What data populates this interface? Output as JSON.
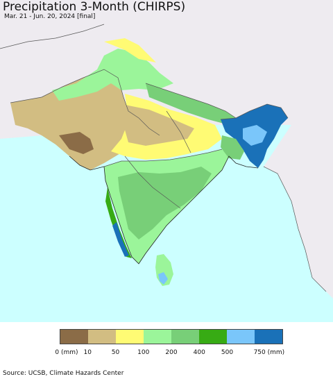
{
  "title": "Precipitation 3-Month (CHIRPS)",
  "subtitle": "Mar. 21 - Jun. 20, 2024 [final]",
  "source": "Source: UCSB, Climate Hazards Center",
  "colors": {
    "ocean": "#ccffff",
    "outside_land": "#eeebf0",
    "boundary": "#555555"
  },
  "legend": {
    "colors": [
      "#8b6c47",
      "#d2bd82",
      "#fffb74",
      "#9bf59a",
      "#78cf78",
      "#37ab14",
      "#7ac6fa",
      "#1a71b8"
    ],
    "labels": [
      {
        "text": "0 (mm)",
        "at": 0
      },
      {
        "text": "10",
        "at": 1
      },
      {
        "text": "50",
        "at": 2
      },
      {
        "text": "100",
        "at": 3
      },
      {
        "text": "200",
        "at": 4
      },
      {
        "text": "400",
        "at": 5
      },
      {
        "text": "500",
        "at": 6
      },
      {
        "text": "750 (mm)",
        "at": 7
      }
    ]
  }
}
